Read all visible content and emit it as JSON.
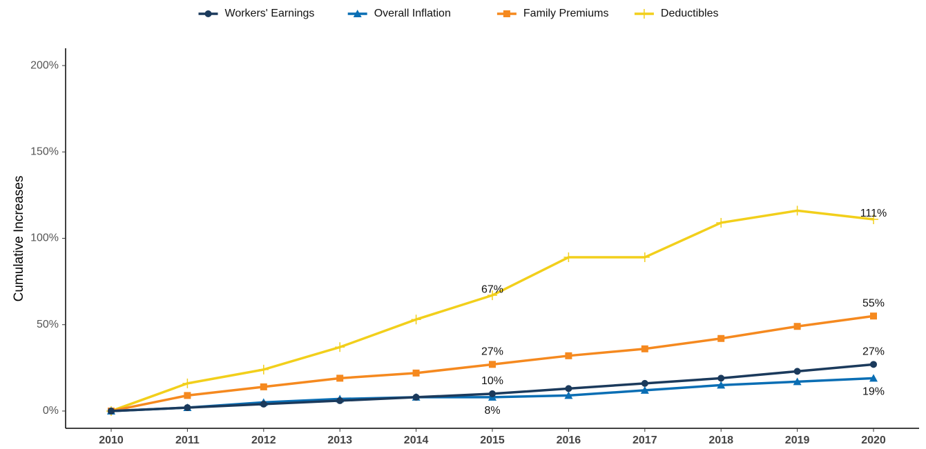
{
  "chart_data": {
    "type": "line",
    "y_label": "Cumulative Increases",
    "categories": [
      "2010",
      "2011",
      "2012",
      "2013",
      "2014",
      "2015",
      "2016",
      "2017",
      "2018",
      "2019",
      "2020"
    ],
    "series": [
      {
        "name": "Workers' Earnings",
        "color": "#1b3a5c",
        "marker": "circle",
        "values": [
          0,
          2,
          4,
          6,
          8,
          10,
          13,
          16,
          19,
          23,
          27
        ],
        "value_labels": [
          null,
          null,
          null,
          null,
          null,
          "10%",
          null,
          null,
          null,
          null,
          "27%"
        ]
      },
      {
        "name": "Overall Inflation",
        "color": "#0a6eb4",
        "marker": "triangle",
        "values": [
          0,
          2,
          5,
          7,
          8,
          8,
          9,
          12,
          15,
          17,
          19
        ],
        "value_labels": [
          null,
          null,
          null,
          null,
          null,
          "8%",
          null,
          null,
          null,
          null,
          "19%"
        ]
      },
      {
        "name": "Family Premiums",
        "color": "#f5891f",
        "marker": "square",
        "values": [
          0,
          9,
          14,
          19,
          22,
          27,
          32,
          36,
          42,
          49,
          55
        ],
        "value_labels": [
          null,
          null,
          null,
          null,
          null,
          "27%",
          null,
          null,
          null,
          null,
          "55%"
        ]
      },
      {
        "name": "Deductibles",
        "color": "#f2cf1b",
        "marker": "plus",
        "values": [
          0,
          16,
          24,
          37,
          53,
          67,
          89,
          89,
          109,
          116,
          111
        ],
        "value_labels": [
          null,
          null,
          null,
          null,
          null,
          "67%",
          null,
          null,
          null,
          null,
          "111%"
        ]
      }
    ],
    "ylim": [
      -10,
      210
    ],
    "yticks": [
      {
        "value": 0,
        "label": "0%"
      },
      {
        "value": 50,
        "label": "50%"
      },
      {
        "value": 100,
        "label": "100%"
      },
      {
        "value": 150,
        "label": "150%"
      },
      {
        "value": 200,
        "label": "200%"
      }
    ],
    "legend": "top",
    "grid": false
  }
}
